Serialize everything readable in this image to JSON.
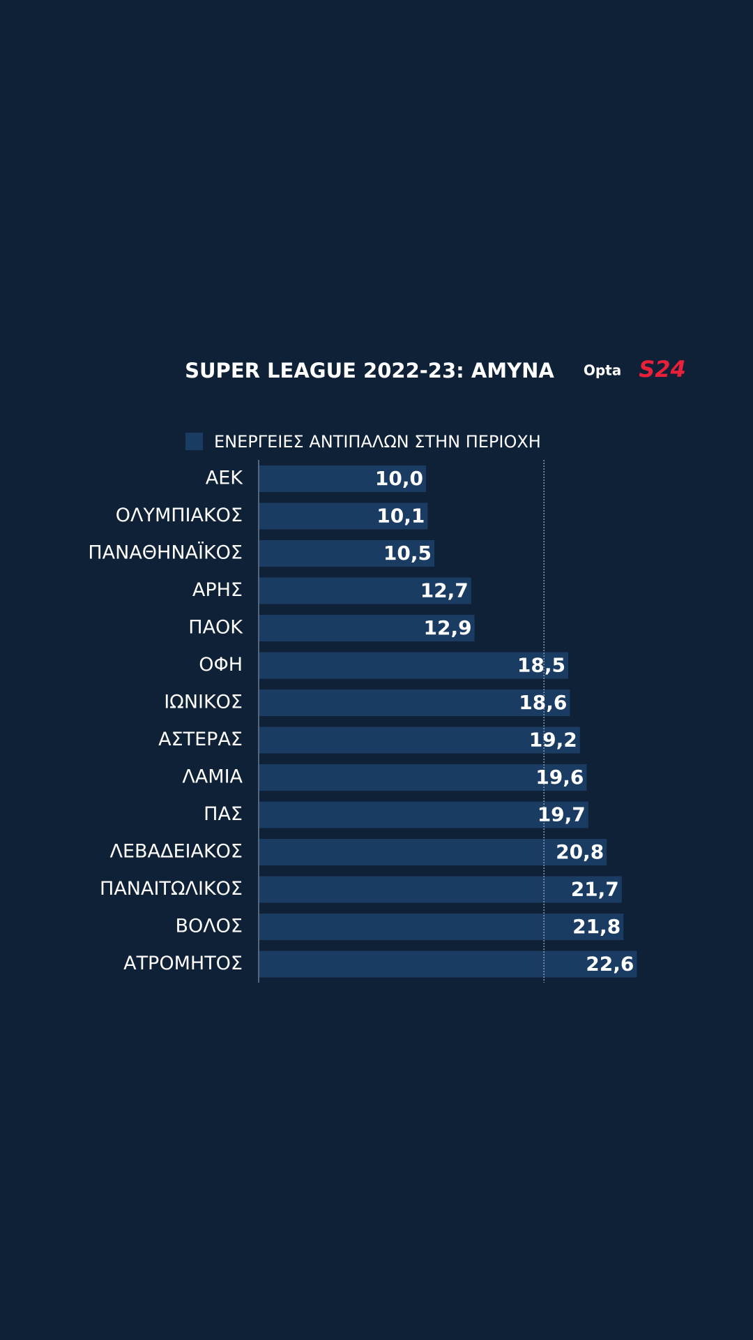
{
  "chart_data": {
    "type": "hbar",
    "title": "SUPER LEAGUE 2022-23: ΑΜΥΝΑ",
    "logos": [
      "Opta",
      "S24"
    ],
    "categories": [
      "ΑΕΚ",
      "ΟΛΥΜΠΙΑΚΟΣ",
      "ΠΑΝΑΘΗΝΑΪΚΟΣ",
      "ΑΡΗΣ",
      "ΠΑΟΚ",
      "ΟΦΗ",
      "ΙΩΝΙΚΟΣ",
      "ΑΣΤΕΡΑΣ",
      "ΛΑΜΙΑ",
      "ΠΑΣ",
      "ΛΕΒΑΔΕΙΑΚΟΣ",
      "ΠΑΝΑΙΤΩΛΙΚΟΣ",
      "ΒΟΛΟΣ",
      "ΑΤΡΟΜΗΤΟΣ"
    ],
    "series": [
      {
        "name": "ΕΝΕΡΓΕΙΕΣ ΑΝΤΙΠΑΛΩΝ ΣΤΗΝ ΠΕΡΙΟΧΗ",
        "color": "#1b3c62",
        "values": [
          10.0,
          10.1,
          10.5,
          12.7,
          12.9,
          18.5,
          18.6,
          19.2,
          19.6,
          19.7,
          20.8,
          21.7,
          21.8,
          22.6
        ],
        "value_labels": [
          "10,0",
          "10,1",
          "10,5",
          "12,7",
          "12,9",
          "18,5",
          "18,6",
          "19,2",
          "19,6",
          "19,7",
          "20,8",
          "21,7",
          "21,8",
          "22,6"
        ]
      }
    ],
    "reference_line": 17.05,
    "xlim": [
      0,
      25
    ]
  }
}
